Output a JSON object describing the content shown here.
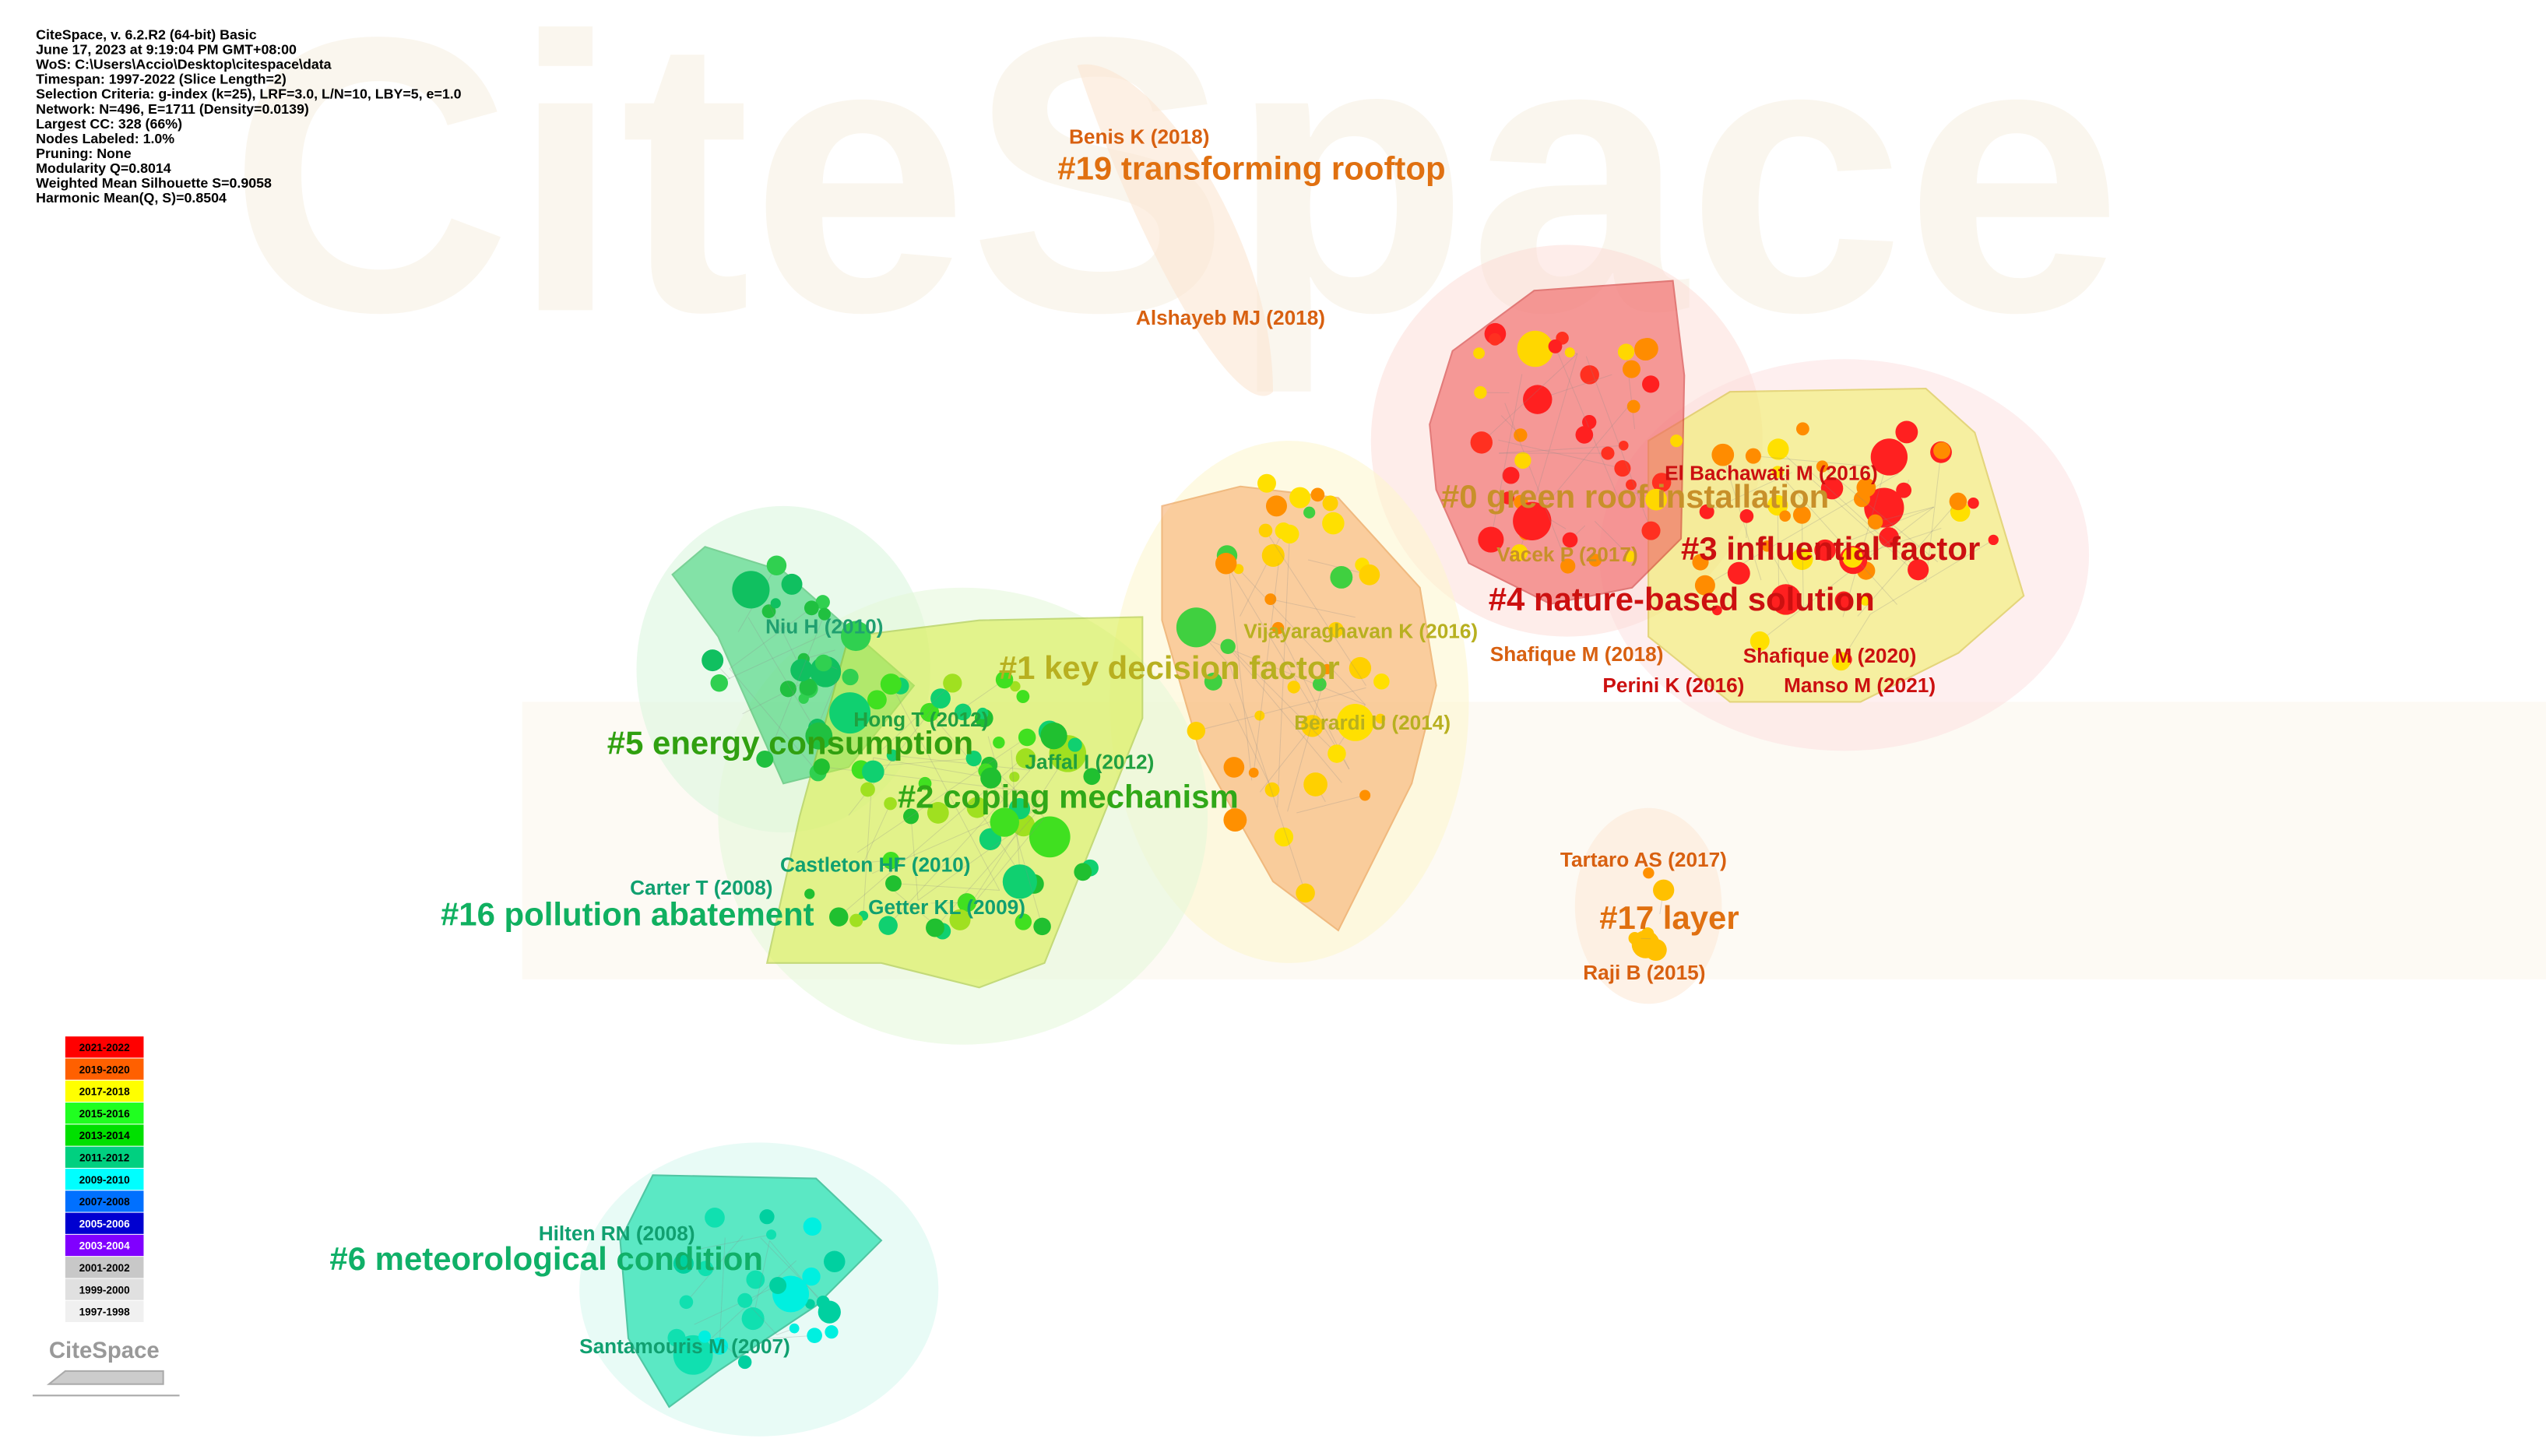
{
  "info": [
    "CiteSpace, v. 6.2.R2 (64-bit) Basic",
    "June 17, 2023 at 9:19:04 PM GMT+08:00",
    "WoS: C:\\Users\\Accio\\Desktop\\citespace\\data",
    "Timespan: 1997-2022 (Slice Length=2)",
    "Selection Criteria: g-index (k=25), LRF=3.0, L/N=10, LBY=5, e=1.0",
    "Network: N=496, E=1711 (Density=0.0139)",
    "Largest CC: 328 (66%)",
    "Nodes Labeled: 1.0%",
    "Pruning: None",
    "Modularity Q=0.8014",
    "Weighted Mean Silhouette S=0.9058",
    "Harmonic Mean(Q, S)=0.8504"
  ],
  "clusters": [
    "#19 transforming rooftop",
    "#0 green roof installation",
    "#3 influential factor",
    "#4 nature-based solution",
    "#1 key decision factor",
    "#5 energy consumption",
    "#2 coping mechanism",
    "#16 pollution abatement",
    "#17 layer",
    "#6 meteorological condition"
  ],
  "nodes": [
    "Benis K (2018)",
    "Alshayeb MJ (2018)",
    "El Bachawati M (2016)",
    "Vacek P (2017)",
    "Vijayaraghavan K (2016)",
    "Shafique M (2018)",
    "Shafique M (2020)",
    "Perini K (2016)",
    "Manso M (2021)",
    "Berardi U (2014)",
    "Niu H (2010)",
    "Hong T (2012)",
    "Jaffal I (2012)",
    "Castleton HF (2010)",
    "Carter T (2008)",
    "Getter KL (2009)",
    "Tartaro AS (2017)",
    "Raji B (2015)",
    "Hilten RN (2008)",
    "Santamouris M (2007)"
  ],
  "legend": [
    "2021-2022",
    "2019-2020",
    "2017-2018",
    "2015-2016",
    "2013-2014",
    "2011-2012",
    "2009-2010",
    "2007-2008",
    "2005-2006",
    "2003-2004",
    "2001-2002",
    "1999-2000",
    "1997-1998"
  ],
  "logo": "CiteSpace"
}
